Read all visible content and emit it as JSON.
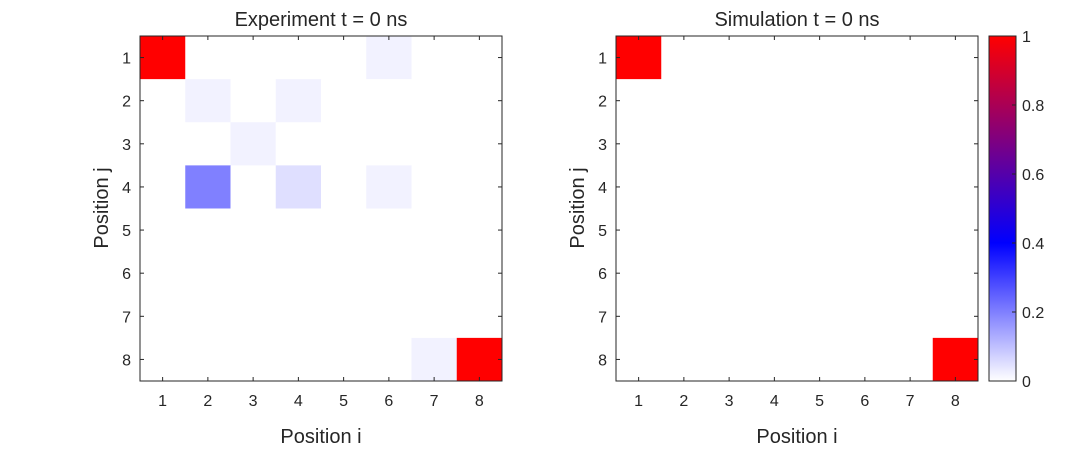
{
  "chart_data": [
    {
      "type": "heatmap",
      "title": "Experiment t = 0 ns",
      "xlabel": "Position i",
      "ylabel": "Position j",
      "x_categories": [
        "1",
        "2",
        "3",
        "4",
        "5",
        "6",
        "7",
        "8"
      ],
      "y_categories": [
        "1",
        "2",
        "3",
        "4",
        "5",
        "6",
        "7",
        "8"
      ],
      "clim": [
        0,
        1
      ],
      "values": [
        [
          1.0,
          0.0,
          0.0,
          0.0,
          0.0,
          0.02,
          0.0,
          0.0
        ],
        [
          0.0,
          0.02,
          0.0,
          0.02,
          0.0,
          0.0,
          0.0,
          0.0
        ],
        [
          0.0,
          0.0,
          0.02,
          0.0,
          0.0,
          0.0,
          0.0,
          0.0
        ],
        [
          0.0,
          0.2,
          0.0,
          0.05,
          0.0,
          0.02,
          0.0,
          0.0
        ],
        [
          0.0,
          0.0,
          0.0,
          0.0,
          0.0,
          0.0,
          0.0,
          0.0
        ],
        [
          0.0,
          0.0,
          0.0,
          0.0,
          0.0,
          0.0,
          0.0,
          0.0
        ],
        [
          0.0,
          0.0,
          0.0,
          0.0,
          0.0,
          0.0,
          0.0,
          0.0
        ],
        [
          0.0,
          0.0,
          0.0,
          0.0,
          0.0,
          0.0,
          0.02,
          1.0
        ]
      ]
    },
    {
      "type": "heatmap",
      "title": "Simulation t = 0 ns",
      "xlabel": "Position i",
      "ylabel": "Position j",
      "x_categories": [
        "1",
        "2",
        "3",
        "4",
        "5",
        "6",
        "7",
        "8"
      ],
      "y_categories": [
        "1",
        "2",
        "3",
        "4",
        "5",
        "6",
        "7",
        "8"
      ],
      "clim": [
        0,
        1
      ],
      "values": [
        [
          1,
          0,
          0,
          0,
          0,
          0,
          0,
          0
        ],
        [
          0,
          0,
          0,
          0,
          0,
          0,
          0,
          0
        ],
        [
          0,
          0,
          0,
          0,
          0,
          0,
          0,
          0
        ],
        [
          0,
          0,
          0,
          0,
          0,
          0,
          0,
          0
        ],
        [
          0,
          0,
          0,
          0,
          0,
          0,
          0,
          0
        ],
        [
          0,
          0,
          0,
          0,
          0,
          0,
          0,
          0
        ],
        [
          0,
          0,
          0,
          0,
          0,
          0,
          0,
          0
        ],
        [
          0,
          0,
          0,
          0,
          0,
          0,
          0,
          1
        ]
      ]
    }
  ],
  "colorbar": {
    "range": [
      0,
      1
    ],
    "ticks": [
      "0",
      "0.2",
      "0.4",
      "0.6",
      "0.8",
      "1"
    ],
    "colormap": [
      "#ffffff",
      "#0000ff",
      "#ff0000"
    ]
  }
}
